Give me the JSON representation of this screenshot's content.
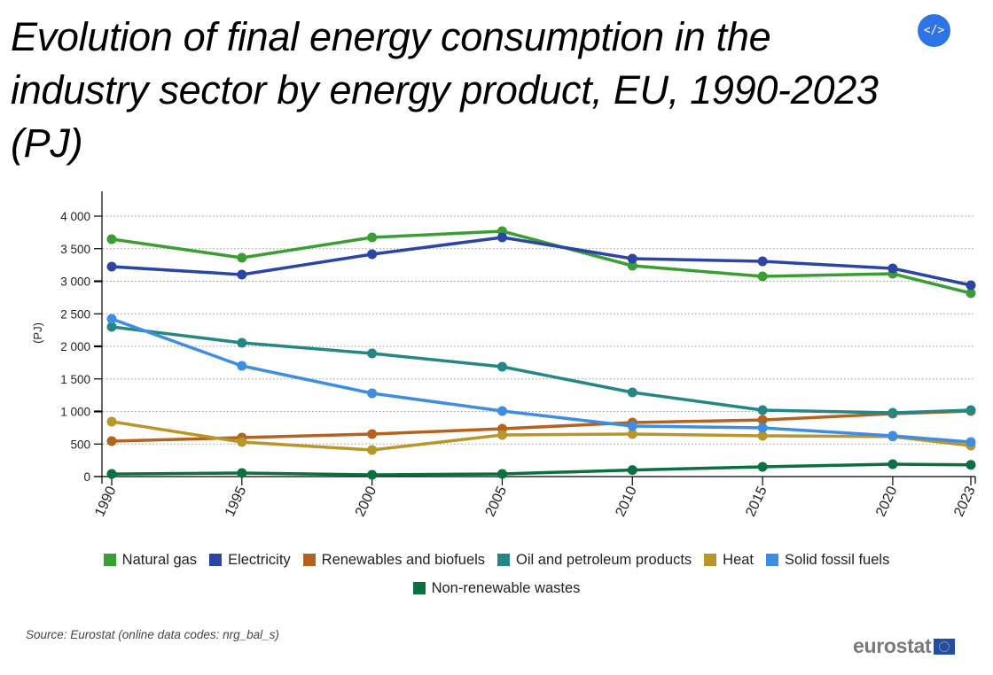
{
  "title": "Evolution of final energy consumption in the industry sector by energy product, EU, 1990-2023 (PJ)",
  "embed_button": {
    "label": "</>",
    "icon": "code-embed-icon"
  },
  "source": "Source: Eurostat (online data codes: nrg_bal_s)",
  "logo": {
    "text": "eurostat",
    "icon": "eu-flag-icon"
  },
  "chart_data": {
    "type": "line",
    "title": "Evolution of final energy consumption in the industry sector by energy product, EU, 1990-2023 (PJ)",
    "xlabel": "",
    "ylabel": "(PJ)",
    "x": [
      1990,
      1995,
      2000,
      2005,
      2010,
      2015,
      2020,
      2023
    ],
    "x_tick_labels": [
      "1990",
      "1995",
      "2000",
      "2005",
      "2010",
      "2015",
      "2020",
      "2023"
    ],
    "ylim": [
      0,
      4000
    ],
    "y_ticks": [
      0,
      500,
      1000,
      1500,
      2000,
      2500,
      3000,
      3500,
      4000
    ],
    "y_tick_labels": [
      "0",
      "500",
      "1 000",
      "1 500",
      "2 000",
      "2 500",
      "3 000",
      "3 500",
      "4 000"
    ],
    "grid": "horizontal dotted",
    "legend_position": "bottom-center",
    "series": [
      {
        "name": "Natural gas",
        "color": "#3a9e35",
        "values": [
          3646,
          3360,
          3673,
          3769,
          3238,
          3075,
          3116,
          2816
        ]
      },
      {
        "name": "Electricity",
        "color": "#2b45a4",
        "values": [
          3224,
          3102,
          3415,
          3673,
          3347,
          3306,
          3197,
          2939
        ]
      },
      {
        "name": "Renewables and biofuels",
        "color": "#b5621f",
        "values": [
          544,
          599,
          653,
          735,
          830,
          870,
          966,
          1007
        ]
      },
      {
        "name": "Oil and petroleum products",
        "color": "#248685",
        "values": [
          2299,
          2054,
          1891,
          1687,
          1293,
          1020,
          980,
          1020
        ]
      },
      {
        "name": "Heat",
        "color": "#b8962a",
        "values": [
          843,
          531,
          408,
          640,
          653,
          626,
          614,
          476
        ]
      },
      {
        "name": "Solid fossil fuels",
        "color": "#3d8de0",
        "values": [
          2422,
          1701,
          1279,
          1007,
          775,
          748,
          626,
          531
        ]
      },
      {
        "name": "Non-renewable wastes",
        "color": "#0b7040",
        "values": [
          40,
          54,
          27,
          41,
          100,
          150,
          190,
          180
        ]
      }
    ]
  }
}
